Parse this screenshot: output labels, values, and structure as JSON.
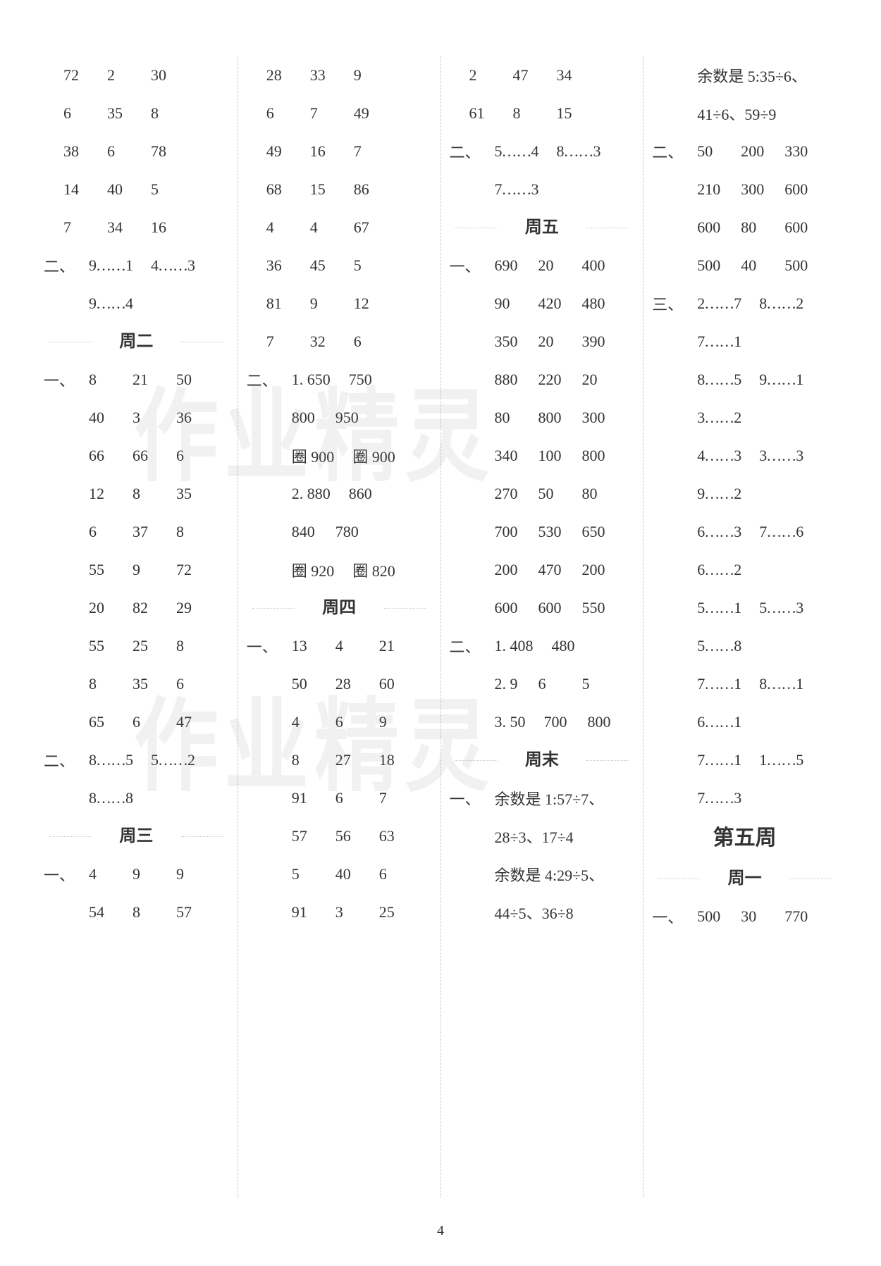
{
  "page_number": "4",
  "watermark_text": "作业精灵",
  "col1": {
    "rows1": [
      [
        "72",
        "2",
        "30"
      ],
      [
        "6",
        "35",
        "8"
      ],
      [
        "38",
        "6",
        "78"
      ],
      [
        "14",
        "40",
        "5"
      ],
      [
        "7",
        "34",
        "16"
      ]
    ],
    "sec2_lines": [
      {
        "label": "二、",
        "cells": [
          "9……1",
          "4……3"
        ]
      },
      {
        "label": "",
        "cells": [
          "9……4"
        ]
      }
    ],
    "day2": "周二",
    "day2_rows": [
      {
        "label": "一、",
        "cells": [
          "8",
          "21",
          "50"
        ]
      },
      {
        "label": "",
        "cells": [
          "40",
          "3",
          "36"
        ]
      },
      {
        "label": "",
        "cells": [
          "66",
          "66",
          "6"
        ]
      },
      {
        "label": "",
        "cells": [
          "12",
          "8",
          "35"
        ]
      },
      {
        "label": "",
        "cells": [
          "6",
          "37",
          "8"
        ]
      },
      {
        "label": "",
        "cells": [
          "55",
          "9",
          "72"
        ]
      },
      {
        "label": "",
        "cells": [
          "20",
          "82",
          "29"
        ]
      },
      {
        "label": "",
        "cells": [
          "55",
          "25",
          "8"
        ]
      },
      {
        "label": "",
        "cells": [
          "8",
          "35",
          "6"
        ]
      },
      {
        "label": "",
        "cells": [
          "65",
          "6",
          "47"
        ]
      }
    ],
    "day2_sec2": [
      {
        "label": "二、",
        "cells": [
          "8……5",
          "5……2"
        ]
      },
      {
        "label": "",
        "cells": [
          "8……8"
        ]
      }
    ],
    "day3": "周三",
    "day3_rows": [
      {
        "label": "一、",
        "cells": [
          "4",
          "9",
          "9"
        ]
      },
      {
        "label": "",
        "cells": [
          "54",
          "8",
          "57"
        ]
      }
    ]
  },
  "col2": {
    "rows1": [
      [
        "28",
        "33",
        "9"
      ],
      [
        "6",
        "7",
        "49"
      ],
      [
        "49",
        "16",
        "7"
      ],
      [
        "68",
        "15",
        "86"
      ],
      [
        "4",
        "4",
        "67"
      ],
      [
        "36",
        "45",
        "5"
      ],
      [
        "81",
        "9",
        "12"
      ],
      [
        "7",
        "32",
        "6"
      ]
    ],
    "sec2": [
      {
        "label": "二、",
        "cells": [
          "1. 650",
          "750"
        ]
      },
      {
        "label": "",
        "cells": [
          "800",
          "950"
        ]
      },
      {
        "label": "",
        "cells": [
          "圈 900",
          "圈 900"
        ]
      },
      {
        "label": "",
        "cells": [
          "2. 880",
          "860"
        ]
      },
      {
        "label": "",
        "cells": [
          "840",
          "780"
        ]
      },
      {
        "label": "",
        "cells": [
          "圈 920",
          "圈 820"
        ]
      }
    ],
    "day4": "周四",
    "day4_rows": [
      {
        "label": "一、",
        "cells": [
          "13",
          "4",
          "21"
        ]
      },
      {
        "label": "",
        "cells": [
          "50",
          "28",
          "60"
        ]
      },
      {
        "label": "",
        "cells": [
          "4",
          "6",
          "9"
        ]
      },
      {
        "label": "",
        "cells": [
          "8",
          "27",
          "18"
        ]
      },
      {
        "label": "",
        "cells": [
          "91",
          "6",
          "7"
        ]
      },
      {
        "label": "",
        "cells": [
          "57",
          "56",
          "63"
        ]
      },
      {
        "label": "",
        "cells": [
          "5",
          "40",
          "6"
        ]
      },
      {
        "label": "",
        "cells": [
          "91",
          "3",
          "25"
        ]
      }
    ]
  },
  "col3": {
    "rows1": [
      [
        "2",
        "47",
        "34"
      ],
      [
        "61",
        "8",
        "15"
      ]
    ],
    "sec2": [
      {
        "label": "二、",
        "cells": [
          "5……4",
          "8……3"
        ]
      },
      {
        "label": "",
        "cells": [
          "7……3"
        ]
      }
    ],
    "day5": "周五",
    "day5_rows": [
      {
        "label": "一、",
        "cells": [
          "690",
          "20",
          "400"
        ]
      },
      {
        "label": "",
        "cells": [
          "90",
          "420",
          "480"
        ]
      },
      {
        "label": "",
        "cells": [
          "350",
          "20",
          "390"
        ]
      },
      {
        "label": "",
        "cells": [
          "880",
          "220",
          "20"
        ]
      },
      {
        "label": "",
        "cells": [
          "80",
          "800",
          "300"
        ]
      },
      {
        "label": "",
        "cells": [
          "340",
          "100",
          "800"
        ]
      },
      {
        "label": "",
        "cells": [
          "270",
          "50",
          "80"
        ]
      },
      {
        "label": "",
        "cells": [
          "700",
          "530",
          "650"
        ]
      },
      {
        "label": "",
        "cells": [
          "200",
          "470",
          "200"
        ]
      },
      {
        "label": "",
        "cells": [
          "600",
          "600",
          "550"
        ]
      }
    ],
    "day5_sec2": [
      {
        "label": "二、",
        "cells": [
          "1. 408",
          "480"
        ]
      },
      {
        "label": "",
        "cells": [
          "2. 9",
          "6",
          "5"
        ]
      },
      {
        "label": "",
        "cells": [
          "3. 50",
          "700",
          "800"
        ]
      }
    ],
    "weekend": "周末",
    "weekend_rows": [
      {
        "label": "一、",
        "cells": [
          "余数是 1:57÷7、"
        ]
      },
      {
        "label": "",
        "cells": [
          "28÷3、17÷4"
        ]
      },
      {
        "label": "",
        "cells": [
          "余数是 4:29÷5、"
        ]
      },
      {
        "label": "",
        "cells": [
          "44÷5、36÷8"
        ]
      }
    ]
  },
  "col4": {
    "rows1": [
      {
        "label": "",
        "cells": [
          "余数是 5:35÷6、"
        ]
      },
      {
        "label": "",
        "cells": [
          "41÷6、59÷9"
        ]
      }
    ],
    "sec2": [
      {
        "label": "二、",
        "cells": [
          "50",
          "200",
          "330"
        ]
      },
      {
        "label": "",
        "cells": [
          "210",
          "300",
          "600"
        ]
      },
      {
        "label": "",
        "cells": [
          "600",
          "80",
          "600"
        ]
      },
      {
        "label": "",
        "cells": [
          "500",
          "40",
          "500"
        ]
      }
    ],
    "sec3": [
      {
        "label": "三、",
        "cells": [
          "2……7",
          "8……2"
        ]
      },
      {
        "label": "",
        "cells": [
          "7……1"
        ]
      },
      {
        "label": "",
        "cells": [
          "8……5",
          "9……1"
        ]
      },
      {
        "label": "",
        "cells": [
          "3……2"
        ]
      },
      {
        "label": "",
        "cells": [
          "4……3",
          "3……3"
        ]
      },
      {
        "label": "",
        "cells": [
          "9……2"
        ]
      },
      {
        "label": "",
        "cells": [
          "6……3",
          "7……6"
        ]
      },
      {
        "label": "",
        "cells": [
          "6……2"
        ]
      },
      {
        "label": "",
        "cells": [
          "5……1",
          "5……3"
        ]
      },
      {
        "label": "",
        "cells": [
          "5……8"
        ]
      },
      {
        "label": "",
        "cells": [
          "7……1",
          "8……1"
        ]
      },
      {
        "label": "",
        "cells": [
          "6……1"
        ]
      },
      {
        "label": "",
        "cells": [
          "7……1",
          "1……5"
        ]
      },
      {
        "label": "",
        "cells": [
          "7……3"
        ]
      }
    ],
    "week5": "第五周",
    "week5_day1": "周一",
    "week5_rows": [
      {
        "label": "一、",
        "cells": [
          "500",
          "30",
          "770"
        ]
      }
    ]
  }
}
